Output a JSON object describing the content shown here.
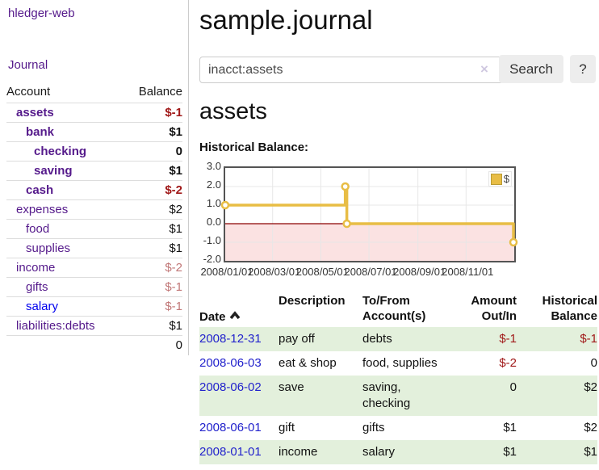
{
  "sidebar": {
    "brand": "hledger-web",
    "journal_link": "Journal",
    "accounts_table": {
      "headers": {
        "account": "Account",
        "balance": "Balance"
      },
      "rows": [
        {
          "name": "assets",
          "balance": "$-1"
        },
        {
          "name": "bank",
          "balance": "$1"
        },
        {
          "name": "checking",
          "balance": "0"
        },
        {
          "name": "saving",
          "balance": "$1"
        },
        {
          "name": "cash",
          "balance": "$-2"
        },
        {
          "name": "expenses",
          "balance": "$2"
        },
        {
          "name": "food",
          "balance": "$1"
        },
        {
          "name": "supplies",
          "balance": "$1"
        },
        {
          "name": "income",
          "balance": "$-2"
        },
        {
          "name": "gifts",
          "balance": "$-1"
        },
        {
          "name": "salary",
          "balance": "$-1"
        },
        {
          "name": "liabilities:debts",
          "balance": "$1"
        }
      ],
      "total": "0"
    }
  },
  "main": {
    "title": "sample.journal",
    "search": {
      "value": "inacct:assets",
      "clear_icon": "×",
      "search_button": "Search",
      "help_button": "?"
    },
    "account_heading": "assets",
    "chart_label": "Historical Balance:"
  },
  "chart_data": {
    "type": "line",
    "step": true,
    "title": "Historical Balance",
    "series": [
      {
        "name": "$",
        "color": "#e8bd45",
        "points": [
          [
            "2008-01-01",
            1
          ],
          [
            "2008-06-01",
            2
          ],
          [
            "2008-06-03",
            0
          ],
          [
            "2008-12-31",
            -1
          ]
        ]
      }
    ],
    "ylim": [
      -2,
      3
    ],
    "yticks": [
      "3.0",
      "2.0",
      "1.0",
      "0.0",
      "-1.0",
      "-2.0"
    ],
    "ytick_values": [
      3,
      2,
      1,
      0,
      -1,
      -2
    ],
    "xlim": [
      "2008-01-01",
      "2009-01-01"
    ],
    "xticks": [
      "2008/01/01",
      "2008/03/01",
      "2008/05/01",
      "2008/07/01",
      "2008/09/01",
      "2008/11/01"
    ],
    "grid": true,
    "legend_position": "top-right",
    "negative_region_fill": "#fbe2e2",
    "zero_line_color": "#8b0000",
    "grid_color": "#e7e7e7",
    "marker_fill": "#ffffff"
  },
  "register": {
    "headers": {
      "date": "Date",
      "description": "Description",
      "account": "To/From\nAccount(s)",
      "amount": "Amount\nOut/In",
      "balance": "Historical\nBalance"
    },
    "rows": [
      {
        "date": "2008-12-31",
        "description": "pay off",
        "account": "debts",
        "amount": "$-1",
        "balance": "$-1"
      },
      {
        "date": "2008-06-03",
        "description": "eat & shop",
        "account": "food, supplies",
        "amount": "$-2",
        "balance": "0"
      },
      {
        "date": "2008-06-02",
        "description": "save",
        "account": "saving,\nchecking",
        "amount": "0",
        "balance": "$2"
      },
      {
        "date": "2008-06-01",
        "description": "gift",
        "account": "gifts",
        "amount": "$1",
        "balance": "$2"
      },
      {
        "date": "2008-01-01",
        "description": "income",
        "account": "salary",
        "amount": "$1",
        "balance": "$1"
      }
    ]
  }
}
